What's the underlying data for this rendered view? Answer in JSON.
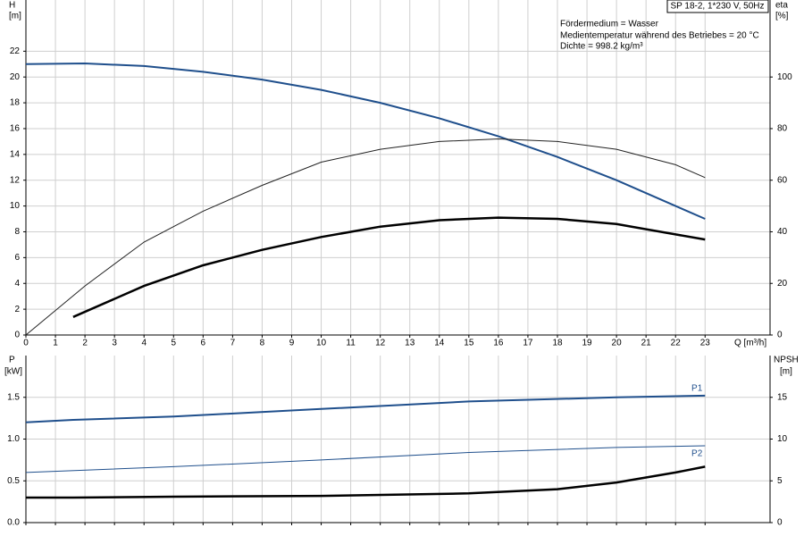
{
  "chart_data": [
    {
      "type": "line",
      "title": "SP 18-2, 1*230 V, 50Hz",
      "notes": [
        "Fördermedium = Wasser",
        "Medientemperatur während des Betriebes = 20 °C",
        "Dichte = 998.2 kg/m³"
      ],
      "y_label": "H",
      "y_unit": "[m]",
      "y2_label": "eta",
      "y2_unit": "[%]",
      "x_label": "Q [m³/h]",
      "xlim": [
        0,
        25.2
      ],
      "xticks": [
        0,
        1,
        2,
        3,
        4,
        5,
        6,
        7,
        8,
        9,
        10,
        11,
        12,
        13,
        14,
        15,
        16,
        17,
        18,
        19,
        20,
        21,
        22,
        23
      ],
      "ylim": [
        0,
        25
      ],
      "yticks": [
        0,
        2,
        4,
        6,
        8,
        10,
        12,
        14,
        16,
        18,
        20,
        22
      ],
      "y2lim": [
        0,
        125
      ],
      "y2ticks": [
        0,
        20,
        40,
        60,
        80,
        100
      ],
      "grid": true,
      "series": [
        {
          "color": "#1f4f8c",
          "width": 2,
          "x": [
            0,
            2,
            4,
            6,
            8,
            10,
            12,
            14,
            16,
            18,
            20,
            22,
            23
          ],
          "values": [
            21.0,
            21.05,
            20.85,
            20.4,
            19.8,
            19.0,
            18.0,
            16.8,
            15.4,
            13.8,
            12.0,
            10.0,
            9.0
          ]
        },
        {
          "axis": "y2",
          "color": "#222222",
          "width": 1,
          "x": [
            0,
            2,
            4,
            6,
            8,
            10,
            12,
            14,
            16,
            18,
            20,
            22,
            23
          ],
          "values": [
            0,
            19,
            36,
            48,
            58,
            67,
            72,
            75,
            76,
            75,
            72,
            66,
            61
          ]
        },
        {
          "axis": "y2",
          "color": "#000000",
          "width": 2.5,
          "x": [
            1.6,
            4,
            6,
            8,
            10,
            12,
            14,
            16,
            18,
            20,
            22,
            23
          ],
          "values": [
            7,
            19,
            27,
            33,
            38,
            42,
            44.5,
            45.5,
            45,
            43,
            39,
            37
          ]
        }
      ]
    },
    {
      "type": "line",
      "y_label": "P",
      "y_unit": "[kW]",
      "y2_label": "NPSH",
      "y2_unit": "[m]",
      "xlim": [
        0,
        25.2
      ],
      "xticks": [
        0,
        1,
        2,
        3,
        4,
        5,
        6,
        7,
        8,
        9,
        10,
        11,
        12,
        13,
        14,
        15,
        16,
        17,
        18,
        19,
        20,
        21,
        22,
        23
      ],
      "ylim": [
        0,
        2
      ],
      "yticks": [
        {
          "value": 0,
          "label": "0.0"
        },
        0.5,
        {
          "value": 1,
          "label": "1.0"
        },
        1.5
      ],
      "y2lim": [
        0,
        20
      ],
      "y2ticks": [
        0,
        5,
        10,
        15
      ],
      "grid": true,
      "series": [
        {
          "name": "P1",
          "color": "#1f4f8c",
          "width": 2,
          "x": [
            0,
            1.6,
            5,
            10,
            15,
            20,
            23
          ],
          "values": [
            1.2,
            1.23,
            1.27,
            1.36,
            1.45,
            1.5,
            1.52
          ]
        },
        {
          "name": "P2",
          "color": "#1f4f8c",
          "width": 1,
          "x": [
            0,
            5,
            10,
            15,
            20,
            23
          ],
          "values": [
            0.6,
            0.67,
            0.75,
            0.84,
            0.9,
            0.92
          ]
        },
        {
          "axis": "y2",
          "color": "#000000",
          "width": 2.5,
          "x": [
            0,
            1.6,
            5,
            10,
            15,
            18,
            20,
            22,
            23
          ],
          "values": [
            3.0,
            3.0,
            3.1,
            3.2,
            3.5,
            4.0,
            4.8,
            6.0,
            6.7
          ]
        }
      ]
    }
  ]
}
